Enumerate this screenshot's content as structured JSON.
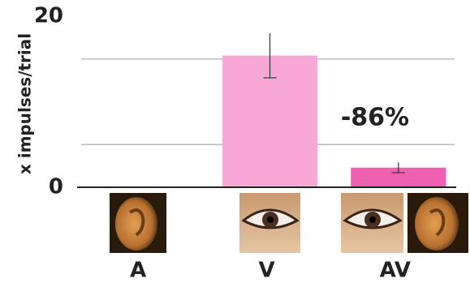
{
  "chart_data": {
    "type": "bar",
    "y_label": "x impulses/trial",
    "categories": [
      "A",
      "V",
      "AV"
    ],
    "values": [
      0,
      15.4,
      2.3
    ],
    "errors": [
      null,
      2.6,
      0.6
    ],
    "colors": [
      "#f7a8d6",
      "#f7a8d6",
      "#f060b0"
    ],
    "annotation": "-86%",
    "ylim": [
      0,
      20
    ],
    "yticks": [
      0,
      20
    ],
    "grid_lines": [
      5,
      15
    ]
  }
}
